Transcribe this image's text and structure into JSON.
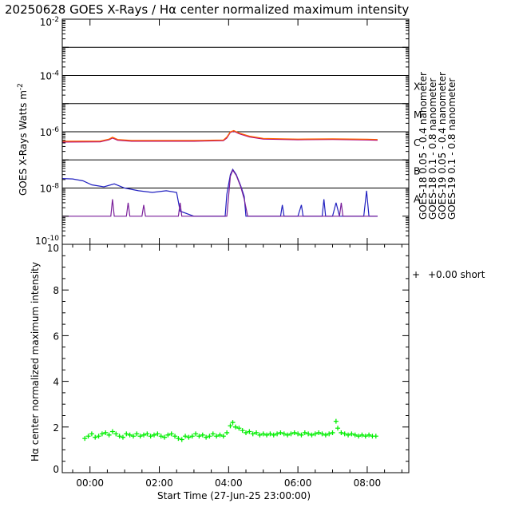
{
  "title": "20250628 GOES X-Rays / Hα center normalized maximum intensity",
  "colors": {
    "background": "#ffffff",
    "axes": "#000000",
    "goes18_short": "#2020c0",
    "goes18_long": "#b0007a",
    "goes19_short": "#7a1f9a",
    "goes19_long": "#ff6600",
    "halpha": "#00ee00"
  },
  "chart_data": [
    {
      "type": "line",
      "ylabel": "GOES X-Rays Watts m",
      "ylabel_sup": "-2",
      "yscale": "log",
      "ylim": [
        1e-10,
        0.01
      ],
      "xlim_hours": [
        -0.8,
        9.2
      ],
      "y_ticks": [
        {
          "base": "10",
          "exp": "-2",
          "value": 0.01
        },
        {
          "base": "10",
          "exp": "-4",
          "value": 0.0001
        },
        {
          "base": "10",
          "exp": "-6",
          "value": 1e-06
        },
        {
          "base": "10",
          "exp": "-8",
          "value": 1e-08
        },
        {
          "base": "10",
          "exp": "-10",
          "value": 1e-10
        }
      ],
      "flare_class_lines": [
        0.001,
        0.0001,
        1e-05,
        1e-06,
        1e-07,
        1e-08
      ],
      "flare_classes": [
        {
          "label": "X",
          "value": 0.0001
        },
        {
          "label": "M",
          "value": 1e-05
        },
        {
          "label": "C",
          "value": 1e-06
        },
        {
          "label": "B",
          "value": 1e-07
        },
        {
          "label": "A",
          "value": 1e-08
        }
      ],
      "legend_placement": "right, vertical",
      "series": [
        {
          "name": "GOES-18 0.05 - 0.4 nanometer",
          "color_key": "goes18_short",
          "points": [
            [
              -0.95,
              2.2e-08
            ],
            [
              -0.5,
              2.1e-08
            ],
            [
              -0.2,
              1.8e-08
            ],
            [
              0.05,
              1.3e-08
            ],
            [
              0.4,
              1.1e-08
            ],
            [
              0.7,
              1.4e-08
            ],
            [
              1.0,
              1e-08
            ],
            [
              1.4,
              8e-09
            ],
            [
              1.8,
              7e-09
            ],
            [
              2.2,
              8e-09
            ],
            [
              2.5,
              7e-09
            ],
            [
              2.6,
              1.5e-09
            ],
            [
              3.0,
              1e-09
            ],
            [
              3.9,
              1e-09
            ],
            [
              3.95,
              6e-09
            ],
            [
              4.05,
              3e-08
            ],
            [
              4.12,
              4.6e-08
            ],
            [
              4.22,
              3e-08
            ],
            [
              4.35,
              1.2e-08
            ],
            [
              4.45,
              5e-09
            ],
            [
              4.5,
              1e-09
            ],
            [
              5.5,
              1e-09
            ],
            [
              5.55,
              2.5e-09
            ],
            [
              5.6,
              1e-09
            ],
            [
              6.0,
              1e-09
            ],
            [
              6.1,
              2.5e-09
            ],
            [
              6.15,
              1e-09
            ],
            [
              6.7,
              1e-09
            ],
            [
              6.75,
              4e-09
            ],
            [
              6.8,
              1e-09
            ],
            [
              7.0,
              1e-09
            ],
            [
              7.1,
              3e-09
            ],
            [
              7.2,
              1e-09
            ],
            [
              7.9,
              1e-09
            ],
            [
              7.98,
              8e-09
            ],
            [
              8.05,
              1e-09
            ],
            [
              8.3,
              1e-09
            ]
          ]
        },
        {
          "name": "GOES-18 0.1 - 0.8 nanometer",
          "color_key": "goes18_long",
          "points": [
            [
              -0.95,
              4.3e-07
            ],
            [
              0.3,
              4.4e-07
            ],
            [
              0.55,
              5.2e-07
            ],
            [
              0.65,
              6e-07
            ],
            [
              0.8,
              5e-07
            ],
            [
              1.2,
              4.6e-07
            ],
            [
              2.0,
              4.6e-07
            ],
            [
              3.0,
              4.6e-07
            ],
            [
              3.85,
              4.8e-07
            ],
            [
              3.95,
              6e-07
            ],
            [
              4.05,
              9.5e-07
            ],
            [
              4.15,
              1.05e-06
            ],
            [
              4.3,
              8.5e-07
            ],
            [
              4.6,
              6.5e-07
            ],
            [
              5.0,
              5.5e-07
            ],
            [
              6.0,
              5.2e-07
            ],
            [
              7.0,
              5.3e-07
            ],
            [
              8.0,
              5.1e-07
            ],
            [
              8.3,
              5e-07
            ]
          ]
        },
        {
          "name": "GOES-19 0.05 - 0.4 nanometer",
          "color_key": "goes19_short",
          "points": [
            [
              -0.95,
              1e-09
            ],
            [
              0.6,
              1e-09
            ],
            [
              0.65,
              4e-09
            ],
            [
              0.7,
              1e-09
            ],
            [
              1.05,
              1e-09
            ],
            [
              1.1,
              3e-09
            ],
            [
              1.15,
              1e-09
            ],
            [
              1.5,
              1e-09
            ],
            [
              1.55,
              2.5e-09
            ],
            [
              1.6,
              1e-09
            ],
            [
              2.55,
              1e-09
            ],
            [
              2.6,
              3e-09
            ],
            [
              2.65,
              1e-09
            ],
            [
              3.95,
              1e-09
            ],
            [
              4.05,
              2.6e-08
            ],
            [
              4.12,
              4.3e-08
            ],
            [
              4.22,
              2.8e-08
            ],
            [
              4.35,
              1.1e-08
            ],
            [
              4.45,
              4e-09
            ],
            [
              4.55,
              1e-09
            ],
            [
              7.2,
              1e-09
            ],
            [
              7.25,
              3e-09
            ],
            [
              7.3,
              1e-09
            ],
            [
              8.3,
              1e-09
            ]
          ]
        },
        {
          "name": "GOES-19 0.1 - 0.8 nanometer",
          "color_key": "goes19_long",
          "points": [
            [
              -0.95,
              4.6e-07
            ],
            [
              0.3,
              4.7e-07
            ],
            [
              0.55,
              5.5e-07
            ],
            [
              0.65,
              6.4e-07
            ],
            [
              0.8,
              5.3e-07
            ],
            [
              1.2,
              4.9e-07
            ],
            [
              2.0,
              4.9e-07
            ],
            [
              3.0,
              4.9e-07
            ],
            [
              3.85,
              5.1e-07
            ],
            [
              3.95,
              6.5e-07
            ],
            [
              4.05,
              1e-06
            ],
            [
              4.15,
              1.1e-06
            ],
            [
              4.3,
              9e-07
            ],
            [
              4.6,
              7e-07
            ],
            [
              5.0,
              5.8e-07
            ],
            [
              6.0,
              5.5e-07
            ],
            [
              7.0,
              5.6e-07
            ],
            [
              8.0,
              5.4e-07
            ],
            [
              8.3,
              5.3e-07
            ]
          ]
        }
      ]
    },
    {
      "type": "scatter",
      "ylabel": "Hα center normalized maximum intensity",
      "xlabel": "Start Time (27-Jun-25 23:00:00)",
      "ylim": [
        0,
        10
      ],
      "xlim_hours": [
        -0.8,
        9.2
      ],
      "y_ticks": [
        "0",
        "2",
        "4",
        "6",
        "8",
        "10"
      ],
      "x_ticks": [
        {
          "label": "00:00",
          "hours": 0
        },
        {
          "label": "02:00",
          "hours": 2
        },
        {
          "label": "04:00",
          "hours": 4
        },
        {
          "label": "06:00",
          "hours": 6
        },
        {
          "label": "08:00",
          "hours": 8
        }
      ],
      "legend": {
        "marker": "+",
        "text": "+0.00 short"
      },
      "series": [
        {
          "marker": "+",
          "color_key": "halpha",
          "points": [
            [
              -0.15,
              1.5
            ],
            [
              -0.05,
              1.6
            ],
            [
              0.05,
              1.7
            ],
            [
              0.15,
              1.55
            ],
            [
              0.25,
              1.6
            ],
            [
              0.35,
              1.7
            ],
            [
              0.45,
              1.75
            ],
            [
              0.55,
              1.65
            ],
            [
              0.65,
              1.8
            ],
            [
              0.75,
              1.7
            ],
            [
              0.85,
              1.6
            ],
            [
              0.95,
              1.55
            ],
            [
              1.05,
              1.7
            ],
            [
              1.15,
              1.65
            ],
            [
              1.25,
              1.6
            ],
            [
              1.35,
              1.7
            ],
            [
              1.45,
              1.6
            ],
            [
              1.55,
              1.65
            ],
            [
              1.65,
              1.7
            ],
            [
              1.75,
              1.6
            ],
            [
              1.85,
              1.65
            ],
            [
              1.95,
              1.7
            ],
            [
              2.05,
              1.6
            ],
            [
              2.15,
              1.55
            ],
            [
              2.25,
              1.65
            ],
            [
              2.35,
              1.7
            ],
            [
              2.45,
              1.6
            ],
            [
              2.55,
              1.5
            ],
            [
              2.65,
              1.45
            ],
            [
              2.75,
              1.6
            ],
            [
              2.85,
              1.55
            ],
            [
              2.95,
              1.6
            ],
            [
              3.05,
              1.7
            ],
            [
              3.15,
              1.6
            ],
            [
              3.25,
              1.65
            ],
            [
              3.35,
              1.55
            ],
            [
              3.45,
              1.6
            ],
            [
              3.55,
              1.7
            ],
            [
              3.65,
              1.6
            ],
            [
              3.75,
              1.65
            ],
            [
              3.85,
              1.6
            ],
            [
              3.95,
              1.75
            ],
            [
              4.05,
              2.05
            ],
            [
              4.12,
              2.2
            ],
            [
              4.2,
              2.0
            ],
            [
              4.3,
              1.95
            ],
            [
              4.4,
              1.85
            ],
            [
              4.5,
              1.75
            ],
            [
              4.6,
              1.8
            ],
            [
              4.7,
              1.7
            ],
            [
              4.8,
              1.75
            ],
            [
              4.9,
              1.65
            ],
            [
              5.0,
              1.7
            ],
            [
              5.1,
              1.65
            ],
            [
              5.2,
              1.7
            ],
            [
              5.3,
              1.65
            ],
            [
              5.4,
              1.7
            ],
            [
              5.5,
              1.75
            ],
            [
              5.6,
              1.7
            ],
            [
              5.7,
              1.65
            ],
            [
              5.8,
              1.7
            ],
            [
              5.9,
              1.75
            ],
            [
              6.0,
              1.7
            ],
            [
              6.1,
              1.65
            ],
            [
              6.2,
              1.75
            ],
            [
              6.3,
              1.7
            ],
            [
              6.4,
              1.65
            ],
            [
              6.5,
              1.7
            ],
            [
              6.6,
              1.75
            ],
            [
              6.7,
              1.7
            ],
            [
              6.8,
              1.65
            ],
            [
              6.9,
              1.7
            ],
            [
              7.0,
              1.75
            ],
            [
              7.1,
              2.25
            ],
            [
              7.15,
              1.95
            ],
            [
              7.25,
              1.75
            ],
            [
              7.35,
              1.7
            ],
            [
              7.45,
              1.65
            ],
            [
              7.55,
              1.7
            ],
            [
              7.65,
              1.65
            ],
            [
              7.75,
              1.6
            ],
            [
              7.85,
              1.65
            ],
            [
              7.95,
              1.6
            ],
            [
              8.05,
              1.65
            ],
            [
              8.15,
              1.6
            ],
            [
              8.25,
              1.6
            ]
          ]
        }
      ]
    }
  ]
}
